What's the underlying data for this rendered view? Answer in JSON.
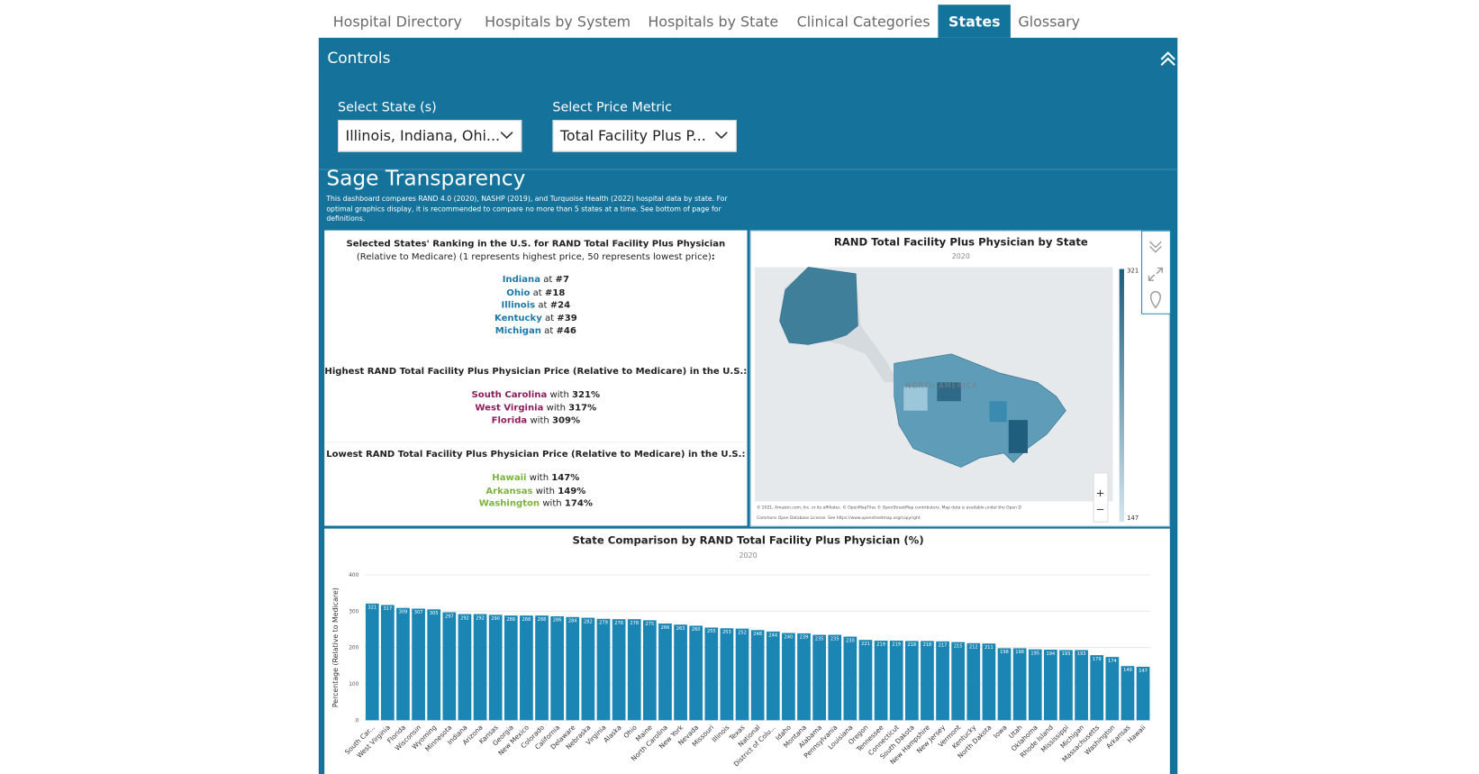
{
  "tabs": [
    "Hospital Directory",
    "Hospitals by System",
    "Hospitals by State",
    "Clinical Categories",
    "States",
    "Glossary"
  ],
  "active_tab": 4,
  "controls": {
    "title": "Controls",
    "state_label": "Select State (s)",
    "state_value": "Illinois, Indiana, Ohi...",
    "metric_label": "Select Price Metric",
    "metric_value": "Total Facility Plus P..."
  },
  "header": {
    "title": "Sage Transparency",
    "description": "This dashboard compares RAND 4.0 (2020), NASHP (2019), and Turquoise Health (2022) hospital data by state. For optimal graphics display, it is recommended to compare no more than 5 states at a time. See bottom of page for definitions."
  },
  "ranking": {
    "heading_bold": "Selected States' Ranking in the U.S. for RAND Total Facility Plus Physician",
    "heading_rest": "(Relative to Medicare) (1 represents highest price, 50 represents lowest price)",
    "heading_end": ":",
    "items": [
      {
        "state": "Indiana",
        "connector": "at",
        "rank": "#7"
      },
      {
        "state": "Ohio",
        "connector": "at",
        "rank": "#18"
      },
      {
        "state": "Illinois",
        "connector": "at",
        "rank": "#24"
      },
      {
        "state": "Kentucky",
        "connector": "at",
        "rank": "#39"
      },
      {
        "state": "Michigan",
        "connector": "at",
        "rank": "#46"
      }
    ]
  },
  "highest": {
    "heading": "Highest RAND Total Facility Plus Physician Price (Relative to Medicare) in the U.S.:",
    "items": [
      {
        "state": "South Carolina",
        "connector": "with",
        "value": "321%"
      },
      {
        "state": "West Virginia",
        "connector": "with",
        "value": "317%"
      },
      {
        "state": "Florida",
        "connector": "with",
        "value": "309%"
      }
    ]
  },
  "lowest": {
    "heading": "Lowest RAND Total Facility Plus Physician Price (Relative to Medicare) in the U.S.:",
    "items": [
      {
        "state": "Hawaii",
        "connector": "with",
        "value": "147%"
      },
      {
        "state": "Arkansas",
        "connector": "with",
        "value": "149%"
      },
      {
        "state": "Washington",
        "connector": "with",
        "value": "174%"
      }
    ]
  },
  "map": {
    "title": "RAND Total Facility Plus Physician by State",
    "subtitle": "2020",
    "legend": {
      "max": 321,
      "min": 147
    },
    "region_label": "NORTH AMERICA",
    "attribution": [
      "© 2021, Amazon.com, Inc. or its affiliates. © OpenMapTiles © OpenStreetMap contributors. Map data is available under the Open D",
      "Commons Open Database License. See https://www.openstreetmap.org/copyright."
    ]
  },
  "chart_data": {
    "type": "bar",
    "title": "State Comparison by RAND Total Facility Plus Physician (%)",
    "subtitle": "2020",
    "y_label": "Percentage (Relative to Medicare)",
    "color": "#1b86b3",
    "grid": true,
    "ylim": [
      0,
      400
    ],
    "yticks": [
      0,
      100,
      200,
      300,
      400
    ],
    "categories": [
      "South Car...",
      "West Virginia",
      "Florida",
      "Wisconsin",
      "Wyoming",
      "Minnesota",
      "Indiana",
      "Arizona",
      "Kansas",
      "Georgia",
      "New Mexico",
      "Colorado",
      "California",
      "Delaware",
      "Nebraska",
      "Virginia",
      "Alaska",
      "Ohio",
      "Maine",
      "North Carolina",
      "New York",
      "Nevada",
      "Missouri",
      "Illinois",
      "Texas",
      "National",
      "District of Colu...",
      "Idaho",
      "Montana",
      "Alabama",
      "Pennsylvania",
      "Louisiana",
      "Oregon",
      "Tennessee",
      "Connecticut",
      "South Dakota",
      "New Hampshire",
      "New Jersey",
      "Vermont",
      "Kentucky",
      "North Dakota",
      "Iowa",
      "Utah",
      "Oklahoma",
      "Rhode Island",
      "Mississippi",
      "Michigan",
      "Massachusetts",
      "Washington",
      "Arkansas",
      "Hawaii"
    ],
    "values": [
      321,
      317,
      309,
      307,
      305,
      297,
      292,
      292,
      290,
      288,
      288,
      288,
      286,
      284,
      282,
      279,
      278,
      278,
      275,
      266,
      263,
      260,
      255,
      253,
      252,
      248,
      244,
      240,
      239,
      235,
      235,
      230,
      221,
      219,
      219,
      218,
      218,
      217,
      215,
      212,
      211,
      198,
      198,
      195,
      194,
      193,
      193,
      179,
      174,
      149,
      147
    ]
  }
}
